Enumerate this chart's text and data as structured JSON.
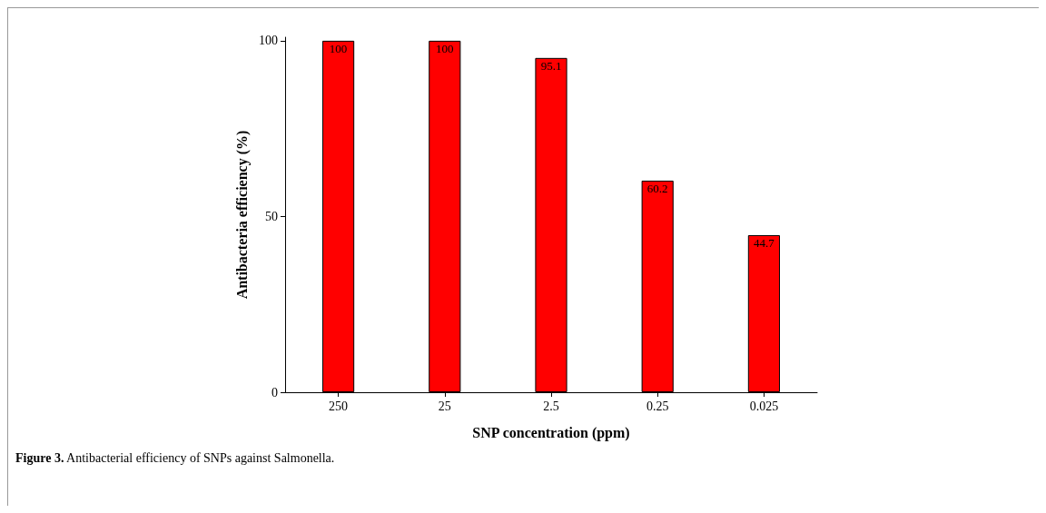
{
  "chart_data": {
    "type": "bar",
    "xlabel": "SNP concentration (ppm)",
    "ylabel": "Antibacteria efficiency (%)",
    "categories": [
      "250",
      "25",
      "2.5",
      "0.25",
      "0.025"
    ],
    "values": [
      100,
      100,
      95.1,
      60.2,
      44.7
    ],
    "color": "#ff0000",
    "ylim": [
      0,
      101
    ],
    "yticks": [
      0,
      50,
      100
    ],
    "grid": false,
    "data_labels": true,
    "annotations": [
      "Figure 3. Antibacterial efficiency of SNPs against Salmonella."
    ]
  }
}
